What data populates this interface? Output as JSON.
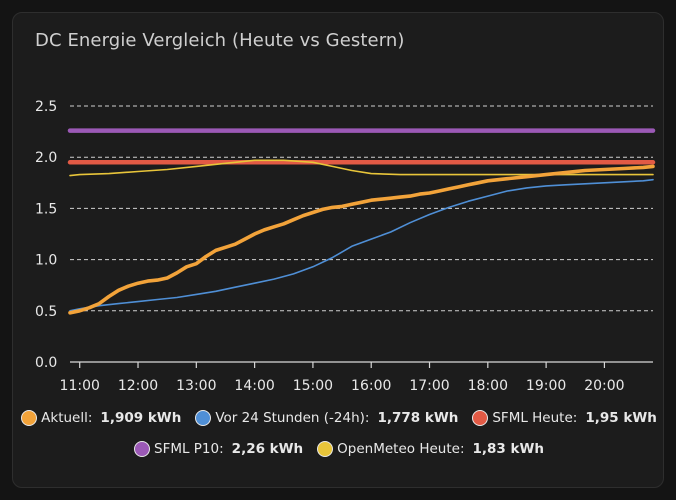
{
  "title": "DC Energie Vergleich (Heute vs Gestern)",
  "chart_data": {
    "type": "line",
    "grid": true,
    "ylim": [
      0,
      2.5
    ],
    "y_ticks": [
      "0.0",
      "0.5",
      "1.0",
      "1.5",
      "2.0",
      "2.5"
    ],
    "xlim": [
      "10:50",
      "20:50"
    ],
    "x_ticks": [
      "11:00",
      "12:00",
      "13:00",
      "14:00",
      "15:00",
      "16:00",
      "17:00",
      "18:00",
      "19:00",
      "20:00"
    ],
    "series": [
      {
        "name": "Aktuell",
        "color": "#f2a33a",
        "value_label": "1,909 kWh",
        "x": [
          "10:50",
          "11:00",
          "11:10",
          "11:20",
          "11:30",
          "11:40",
          "11:50",
          "12:00",
          "12:10",
          "12:20",
          "12:30",
          "12:40",
          "12:50",
          "13:00",
          "13:10",
          "13:20",
          "13:30",
          "13:40",
          "13:50",
          "14:00",
          "14:10",
          "14:20",
          "14:30",
          "14:40",
          "14:50",
          "15:00",
          "15:10",
          "15:20",
          "15:30",
          "15:40",
          "15:50",
          "16:00",
          "16:10",
          "16:20",
          "16:30",
          "16:40",
          "16:50",
          "17:00",
          "17:10",
          "17:20",
          "17:30",
          "17:40",
          "17:50",
          "18:00",
          "18:20",
          "18:40",
          "19:00",
          "19:20",
          "19:40",
          "20:00",
          "20:20",
          "20:40",
          "20:50"
        ],
        "y": [
          0.48,
          0.5,
          0.53,
          0.57,
          0.64,
          0.7,
          0.74,
          0.77,
          0.79,
          0.8,
          0.82,
          0.87,
          0.93,
          0.96,
          1.03,
          1.09,
          1.12,
          1.15,
          1.2,
          1.25,
          1.29,
          1.32,
          1.35,
          1.39,
          1.43,
          1.46,
          1.49,
          1.51,
          1.52,
          1.54,
          1.56,
          1.58,
          1.59,
          1.6,
          1.61,
          1.62,
          1.64,
          1.65,
          1.67,
          1.69,
          1.71,
          1.73,
          1.75,
          1.77,
          1.79,
          1.81,
          1.83,
          1.85,
          1.87,
          1.88,
          1.89,
          1.9,
          1.91
        ]
      },
      {
        "name": "Vor 24 Stunden (-24h)",
        "color": "#4f8fd6",
        "value_label": "1,778 kWh",
        "x": [
          "10:50",
          "11:00",
          "11:20",
          "11:40",
          "12:00",
          "12:20",
          "12:40",
          "13:00",
          "13:20",
          "13:40",
          "14:00",
          "14:20",
          "14:40",
          "15:00",
          "15:20",
          "15:40",
          "16:00",
          "16:20",
          "16:40",
          "17:00",
          "17:20",
          "17:40",
          "18:00",
          "18:20",
          "18:40",
          "19:00",
          "19:20",
          "19:40",
          "20:00",
          "20:20",
          "20:40",
          "20:50"
        ],
        "y": [
          0.5,
          0.52,
          0.55,
          0.57,
          0.59,
          0.61,
          0.63,
          0.66,
          0.69,
          0.73,
          0.77,
          0.81,
          0.86,
          0.93,
          1.02,
          1.13,
          1.2,
          1.27,
          1.36,
          1.44,
          1.51,
          1.57,
          1.62,
          1.67,
          1.7,
          1.72,
          1.73,
          1.74,
          1.75,
          1.76,
          1.77,
          1.78
        ]
      },
      {
        "name": "SFML Heute",
        "color": "#e25a45",
        "value_label": "1,95 kWh",
        "x": [
          "10:50",
          "20:50"
        ],
        "y": [
          1.95,
          1.95
        ]
      },
      {
        "name": "SFML P10",
        "color": "#9b59b6",
        "value_label": "2,26 kWh",
        "x": [
          "10:50",
          "20:50"
        ],
        "y": [
          2.26,
          2.26
        ]
      },
      {
        "name": "OpenMeteo Heute",
        "color": "#e8c53a",
        "value_label": "1,83 kWh",
        "x": [
          "10:50",
          "11:00",
          "11:30",
          "12:00",
          "12:30",
          "13:00",
          "13:30",
          "14:00",
          "14:30",
          "15:00",
          "15:20",
          "15:40",
          "16:00",
          "16:30",
          "17:00",
          "17:30",
          "18:00",
          "19:00",
          "20:00",
          "20:50"
        ],
        "y": [
          1.82,
          1.83,
          1.84,
          1.86,
          1.88,
          1.91,
          1.94,
          1.97,
          1.97,
          1.95,
          1.91,
          1.87,
          1.84,
          1.83,
          1.83,
          1.83,
          1.83,
          1.83,
          1.83,
          1.83
        ]
      }
    ]
  }
}
